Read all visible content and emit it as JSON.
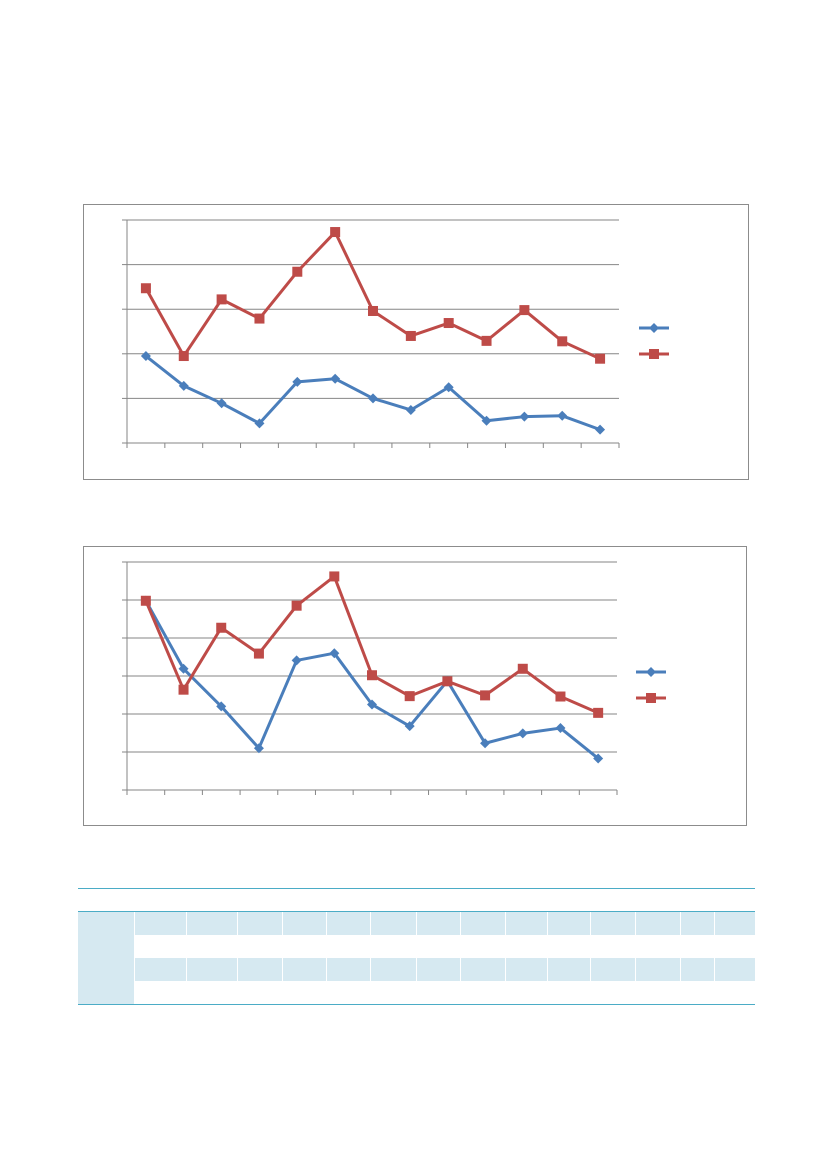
{
  "colors": {
    "series1": "#4a7ebb",
    "series2": "#be4b48",
    "grid": "#868686",
    "table_accent": "#4bacc6",
    "table_band": "#d6e9f1"
  },
  "chart_data": [
    {
      "type": "line",
      "grid": true,
      "legend_position": "right",
      "ylim": [
        0,
        5
      ],
      "x": [
        1,
        2,
        3,
        4,
        5,
        6,
        7,
        8,
        9,
        10,
        11,
        12,
        13
      ],
      "series": [
        {
          "marker": "diamond",
          "color": "#4a7ebb",
          "values": [
            1.95,
            1.28,
            0.89,
            0.44,
            1.37,
            1.44,
            1.0,
            0.74,
            1.25,
            0.5,
            0.59,
            0.61,
            0.3
          ]
        },
        {
          "marker": "square",
          "color": "#be4b48",
          "values": [
            3.47,
            1.95,
            3.22,
            2.79,
            3.84,
            4.73,
            2.96,
            2.4,
            2.69,
            2.29,
            2.98,
            2.28,
            1.89
          ]
        }
      ]
    },
    {
      "type": "line",
      "grid": true,
      "legend_position": "right",
      "ylim": [
        0,
        6
      ],
      "x": [
        1,
        2,
        3,
        4,
        5,
        6,
        7,
        8,
        9,
        10,
        11,
        12,
        13
      ],
      "series": [
        {
          "marker": "diamond",
          "color": "#4a7ebb",
          "values": [
            4.98,
            3.19,
            2.2,
            1.1,
            3.41,
            3.6,
            2.25,
            1.68,
            2.87,
            1.23,
            1.49,
            1.63,
            0.83
          ]
        },
        {
          "marker": "square",
          "color": "#be4b48",
          "values": [
            4.98,
            2.64,
            4.27,
            3.59,
            4.85,
            5.62,
            3.02,
            2.47,
            2.86,
            2.49,
            3.19,
            2.46,
            2.03
          ]
        }
      ]
    }
  ],
  "table": {
    "column_count": 14,
    "row_groups": 2,
    "headers": [],
    "rows": []
  }
}
